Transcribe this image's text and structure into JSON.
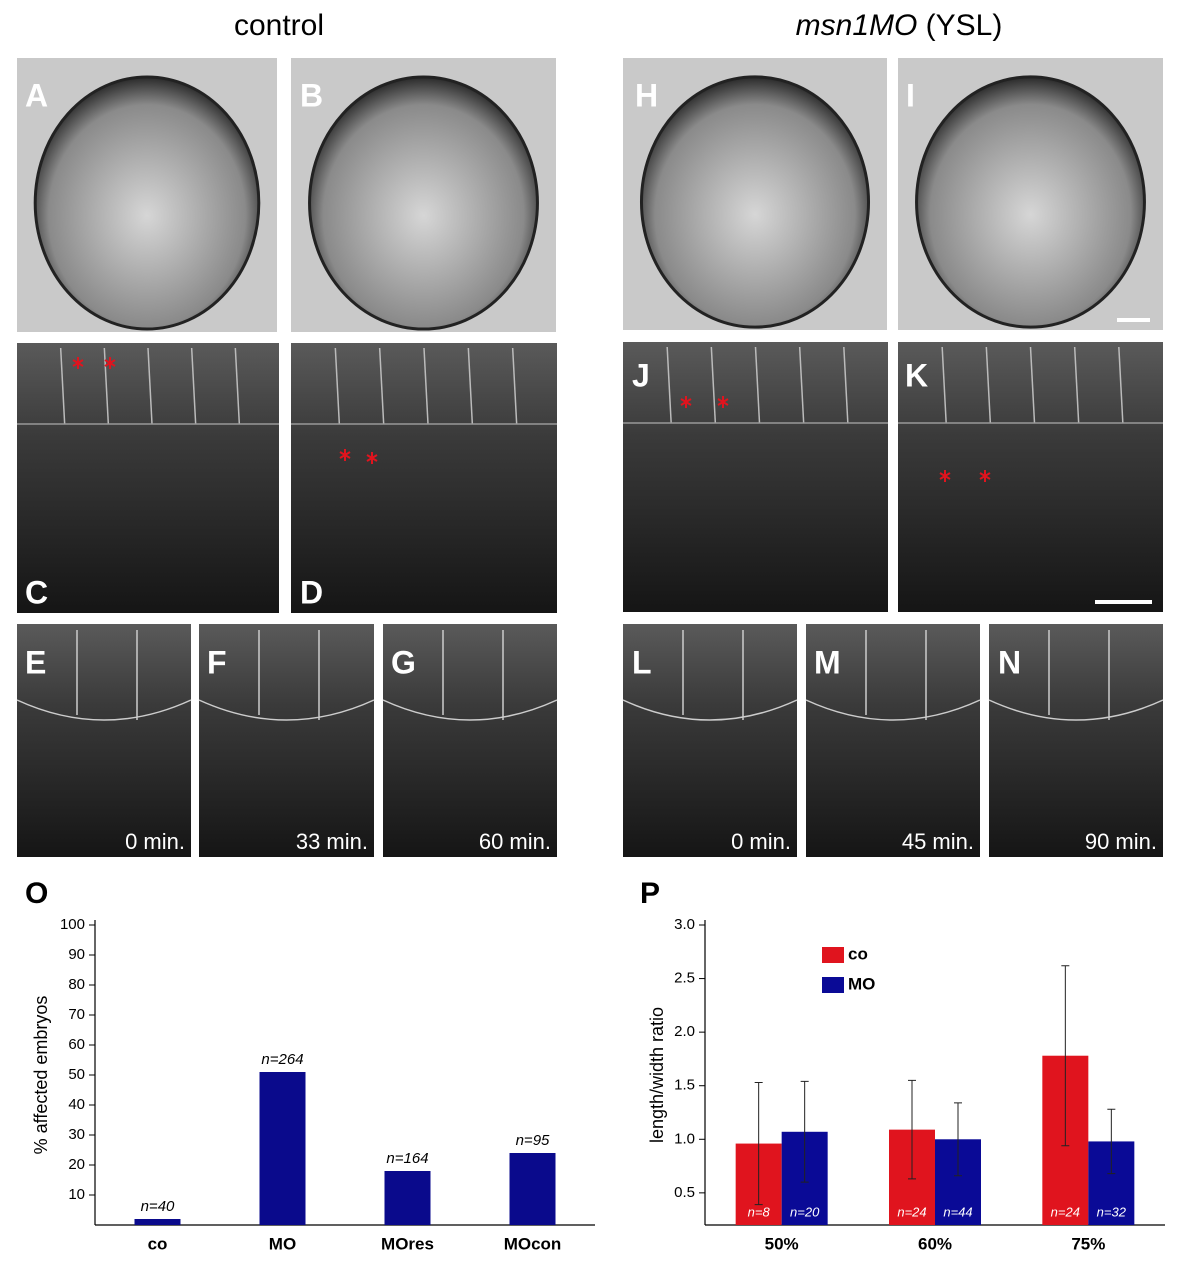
{
  "headers": {
    "left": "control",
    "right_italic": "msn1MO",
    "right": "(YSL)"
  },
  "panel_labels": [
    "A",
    "B",
    "H",
    "I",
    "C",
    "D",
    "J",
    "K",
    "E",
    "F",
    "G",
    "L",
    "M",
    "N"
  ],
  "time_labels": [
    "0 min.",
    "33 min.",
    "60 min.",
    "0 min.",
    "45 min.",
    "90 min."
  ],
  "chart_data": [
    {
      "type": "bar",
      "label": "O",
      "ylabel": "% affected embryos",
      "categories": [
        "co",
        "MO",
        "MOres",
        "MOcon"
      ],
      "values": [
        2,
        51,
        18,
        24
      ],
      "annotations": [
        "n=40",
        "n=264",
        "n=164",
        "n=95"
      ],
      "color": "#0a0a8c",
      "ylim": [
        0,
        100
      ],
      "yticks": [
        10,
        20,
        30,
        40,
        50,
        60,
        70,
        80,
        90,
        100
      ]
    },
    {
      "type": "bar",
      "label": "P",
      "ylabel": "length/width ratio",
      "categories": [
        "50%",
        "60%",
        "75%"
      ],
      "legend": "top-left",
      "series": [
        {
          "name": "co",
          "color": "#e0141e",
          "values": [
            0.96,
            1.09,
            1.78
          ],
          "errors": [
            0.57,
            0.46,
            0.84
          ],
          "annotations": [
            "n=8",
            "n=24",
            "n=24"
          ]
        },
        {
          "name": "MO",
          "color": "#0a0a96",
          "values": [
            1.07,
            1.0,
            0.98
          ],
          "errors": [
            0.47,
            0.34,
            0.3
          ],
          "annotations": [
            "n=20",
            "n=44",
            "n=32"
          ]
        }
      ],
      "ylim": [
        0.2,
        3.0
      ],
      "yticks": [
        0.5,
        {
          "value": 1,
          "label": "1.0"
        },
        1.5,
        {
          "value": 2,
          "label": "2.0"
        },
        2.5,
        {
          "value": 3,
          "label": "3.0"
        }
      ]
    }
  ]
}
